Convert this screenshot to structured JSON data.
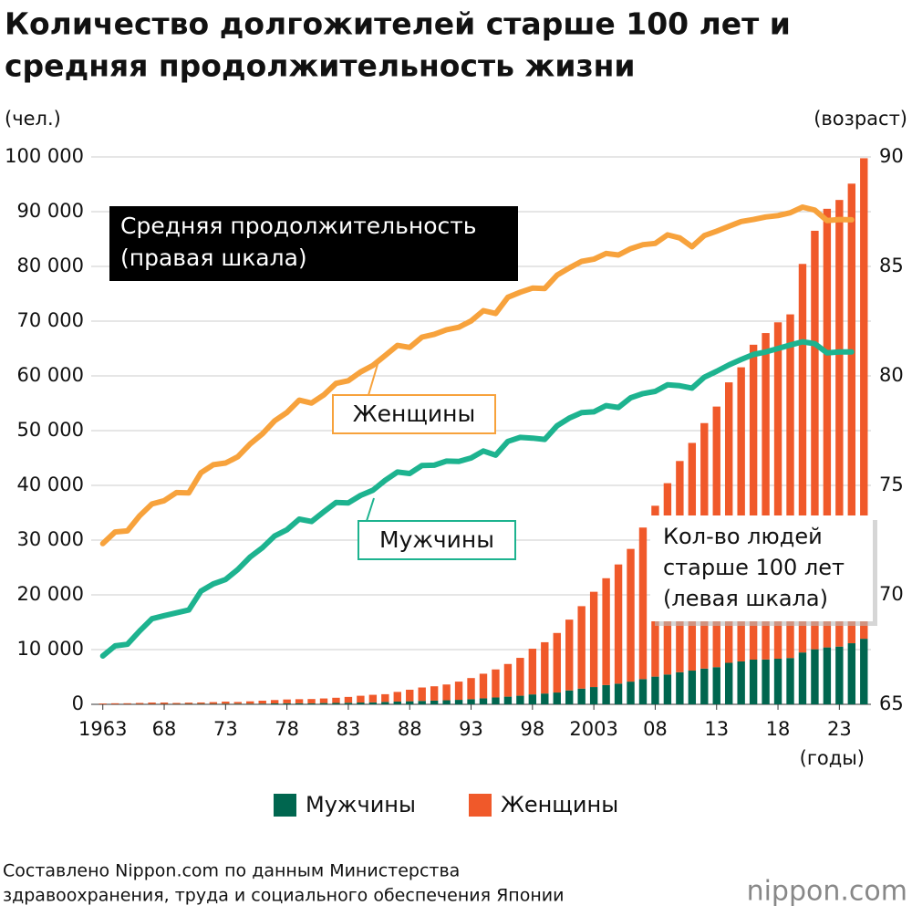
{
  "chart_data": {
    "type": "bar",
    "title": [
      "Количество долгожителей старше 100 лет и",
      "средняя продолжительность жизни"
    ],
    "y_label": "(чел.)",
    "y2_label": "(возраст)",
    "x_label": "(годы)",
    "x": [
      1963,
      1964,
      1965,
      1966,
      1967,
      1968,
      1969,
      1970,
      1971,
      1972,
      1973,
      1974,
      1975,
      1976,
      1977,
      1978,
      1979,
      1980,
      1981,
      1982,
      1983,
      1984,
      1985,
      1986,
      1987,
      1988,
      1989,
      1990,
      1991,
      1992,
      1993,
      1994,
      1995,
      1996,
      1997,
      1998,
      1999,
      2000,
      2001,
      2002,
      2003,
      2004,
      2005,
      2006,
      2007,
      2008,
      2009,
      2010,
      2011,
      2012,
      2013,
      2014,
      2015,
      2016,
      2017,
      2018,
      2019,
      2020,
      2021,
      2022,
      2023,
      2024,
      2025
    ],
    "xlim": [
      1962.5,
      2025.5
    ],
    "xticks": [
      1963,
      {
        "value": 1968,
        "label": "68"
      },
      {
        "value": 1973,
        "label": "73"
      },
      {
        "value": 1978,
        "label": "78"
      },
      {
        "value": 1983,
        "label": "83"
      },
      {
        "value": 1988,
        "label": "88"
      },
      {
        "value": 1993,
        "label": "93"
      },
      {
        "value": 1998,
        "label": "98"
      },
      2003,
      {
        "value": 2008,
        "label": "08"
      },
      {
        "value": 2013,
        "label": "13"
      },
      {
        "value": 2018,
        "label": "18"
      },
      {
        "value": 2023,
        "label": "23"
      }
    ],
    "ylim": [
      0,
      100000
    ],
    "yticks": [
      0,
      {
        "value": 10000,
        "label": "10 000"
      },
      {
        "value": 20000,
        "label": "20 000"
      },
      {
        "value": 30000,
        "label": "30 000"
      },
      {
        "value": 40000,
        "label": "40 000"
      },
      {
        "value": 50000,
        "label": "50 000"
      },
      {
        "value": 60000,
        "label": "60 000"
      },
      {
        "value": 70000,
        "label": "70 000"
      },
      {
        "value": 80000,
        "label": "80 000"
      },
      {
        "value": 90000,
        "label": "90 000"
      },
      {
        "value": 100000,
        "label": "100 000"
      }
    ],
    "y2lim": [
      65,
      90
    ],
    "y2ticks": [
      65,
      70,
      75,
      80,
      85,
      90
    ],
    "grid": true,
    "stacked": true,
    "series": [
      {
        "name": "Мужчины",
        "type": "bar",
        "color": "#00664f",
        "values": [
          20,
          30,
          43,
          54,
          57,
          61,
          62,
          78,
          93,
          78,
          94,
          106,
          102,
          127,
          164,
          181,
          185,
          174,
          233,
          251,
          286,
          329,
          359,
          442,
          505,
          562,
          628,
          680,
          745,
          822,
          946,
          1093,
          1255,
          1400,
          1570,
          1812,
          1973,
          2158,
          2541,
          2875,
          3159,
          3523,
          3779,
          4150,
          4613,
          5063,
          5447,
          5869,
          6162,
          6534,
          6791,
          7586,
          7840,
          8167,
          8197,
          8331,
          8463,
          9475,
          10060,
          10397,
          10550,
          11161,
          11979
        ]
      },
      {
        "name": "Женщины",
        "type": "bar",
        "color": "#f0592a",
        "values": [
          133,
          161,
          155,
          198,
          270,
          266,
          190,
          232,
          246,
          327,
          401,
          321,
          446,
          539,
          620,
          706,
          752,
          794,
          839,
          950,
          1068,
          1238,
          1381,
          1409,
          1766,
          2106,
          2450,
          2618,
          2880,
          3330,
          3856,
          4500,
          5123,
          5973,
          6921,
          8346,
          9373,
          10878,
          12934,
          15059,
          17402,
          19515,
          21775,
          24245,
          27682,
          31213,
          34952,
          38580,
          41594,
          44842,
          47606,
          51234,
          53728,
          57525,
          59627,
          61454,
          62775,
          70975,
          76450,
          80129,
          81589,
          83958,
          87784
        ]
      },
      {
        "name": "Женщины",
        "type": "line",
        "axis": "y2",
        "color": "#f7a23c",
        "values": [
          72.34,
          72.87,
          72.92,
          73.61,
          74.15,
          74.3,
          74.67,
          74.66,
          75.58,
          75.94,
          76.02,
          76.31,
          76.89,
          77.35,
          77.95,
          78.33,
          78.89,
          78.76,
          79.13,
          79.66,
          79.78,
          80.18,
          80.48,
          80.93,
          81.39,
          81.3,
          81.77,
          81.9,
          82.11,
          82.22,
          82.51,
          82.98,
          82.85,
          83.59,
          83.82,
          84.01,
          83.99,
          84.6,
          84.93,
          85.23,
          85.33,
          85.59,
          85.52,
          85.81,
          85.99,
          86.05,
          86.44,
          86.3,
          85.9,
          86.41,
          86.61,
          86.83,
          87.05,
          87.14,
          87.26,
          87.32,
          87.45,
          87.71,
          87.57,
          87.09,
          87.14,
          87.13,
          null
        ]
      },
      {
        "name": "Мужчины",
        "type": "line",
        "axis": "y2",
        "color": "#1db38f",
        "values": [
          67.21,
          67.67,
          67.74,
          68.35,
          68.91,
          69.05,
          69.18,
          69.31,
          70.17,
          70.5,
          70.7,
          71.16,
          71.73,
          72.15,
          72.69,
          72.97,
          73.46,
          73.35,
          73.79,
          74.22,
          74.2,
          74.54,
          74.78,
          75.23,
          75.61,
          75.54,
          75.91,
          75.92,
          76.11,
          76.09,
          76.25,
          76.57,
          76.38,
          77.01,
          77.19,
          77.16,
          77.1,
          77.72,
          78.07,
          78.32,
          78.36,
          78.64,
          78.56,
          79.0,
          79.19,
          79.29,
          79.59,
          79.55,
          79.44,
          79.94,
          80.21,
          80.5,
          80.75,
          80.98,
          81.09,
          81.25,
          81.41,
          81.56,
          81.47,
          81.05,
          81.09,
          81.09,
          null
        ]
      }
    ],
    "line_annotation": [
      "Средняя продолжительность",
      "(правая шкала)"
    ],
    "bar_annotation": [
      "Кол-во людей",
      "старше 100 лет",
      "(левая шкала)"
    ],
    "source": [
      "Составлено Nippon.com по данным Министерства",
      "здравоохранения, труда и социального обеспечения Японии"
    ],
    "logo": "nippon.com"
  }
}
